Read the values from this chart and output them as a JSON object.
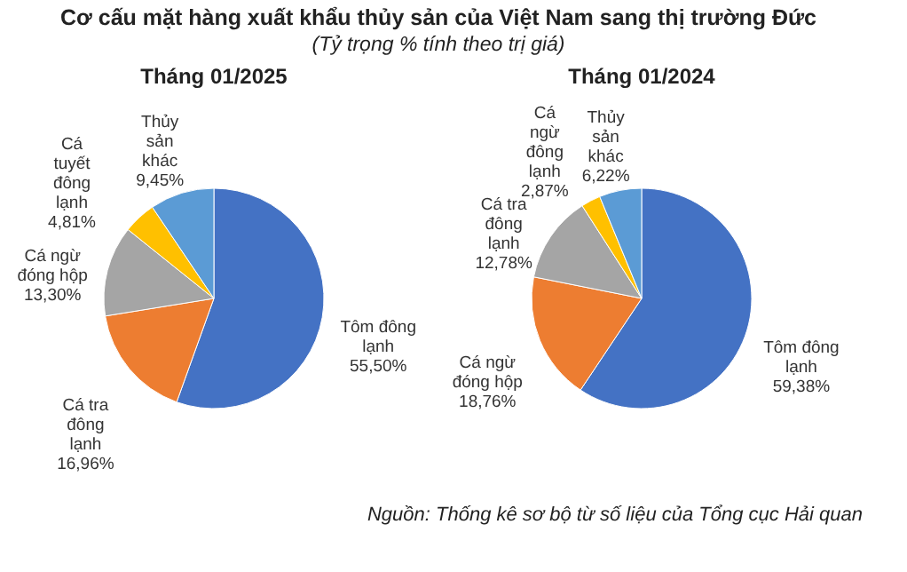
{
  "chart_data": [
    {
      "type": "pie",
      "title": "Tháng 01/2025",
      "annotations": [
        "Cơ cấu mặt hàng xuất khẩu thủy sản của Việt Nam sang thị trường Đức",
        "(Tỷ trọng % tính theo trị giá)"
      ],
      "categories": [
        "Tôm đông lạnh",
        "Cá tra đông lạnh",
        "Cá ngừ đóng hộp",
        "Cá tuyết đông lạnh",
        "Thủy sản khác"
      ],
      "values": [
        55.5,
        16.96,
        13.3,
        4.81,
        9.45
      ],
      "value_labels": [
        "55,50%",
        "16,96%",
        "13,30%",
        "4,81%",
        "9,45%"
      ],
      "colors": [
        "#4472c4",
        "#ed7d31",
        "#a5a5a5",
        "#ffc000",
        "#5b9bd5"
      ]
    },
    {
      "type": "pie",
      "title": "Tháng 01/2024",
      "annotations": [
        "Nguồn: Thống kê sơ bộ từ số liệu của Tổng cục Hải quan"
      ],
      "categories": [
        "Tôm đông lạnh",
        "Cá ngừ đóng hộp",
        "Cá tra đông lạnh",
        "Cá ngừ đông lạnh",
        "Thủy sản khác"
      ],
      "values": [
        59.38,
        18.76,
        12.78,
        2.87,
        6.22
      ],
      "value_labels": [
        "59,38%",
        "18,76%",
        "12,78%",
        "2,87%",
        "6,22%"
      ],
      "colors": [
        "#4472c4",
        "#ed7d31",
        "#a5a5a5",
        "#ffc000",
        "#5b9bd5"
      ]
    }
  ]
}
